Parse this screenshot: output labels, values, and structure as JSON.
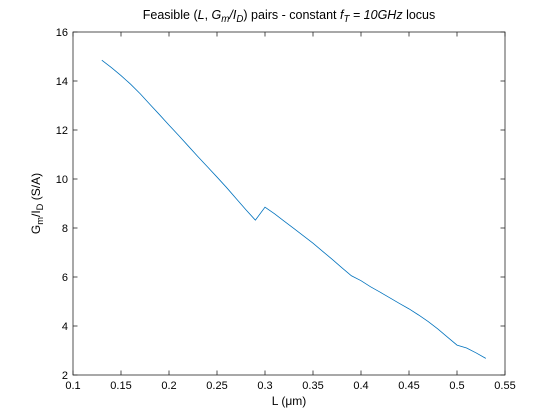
{
  "chart_data": {
    "type": "line",
    "title_parts": [
      {
        "t": "Feasible (",
        "s": "normal"
      },
      {
        "t": "L",
        "s": "italic"
      },
      {
        "t": ", ",
        "s": "normal"
      },
      {
        "t": "G",
        "s": "italic"
      },
      {
        "t": "m",
        "s": "italic",
        "sub": true
      },
      {
        "t": "/",
        "s": "italic"
      },
      {
        "t": "I",
        "s": "italic"
      },
      {
        "t": "D",
        "s": "italic",
        "sub": true
      },
      {
        "t": ") pairs - constant ",
        "s": "normal"
      },
      {
        "t": "f",
        "s": "italic"
      },
      {
        "t": "T",
        "s": "italic",
        "sub": true
      },
      {
        "t": " = 10GHz",
        "s": "italic"
      },
      {
        "t": " locus",
        "s": "normal"
      }
    ],
    "xlabel_parts": [
      {
        "t": "L (",
        "s": "normal"
      },
      {
        "t": "μ",
        "s": "normal"
      },
      {
        "t": "m)",
        "s": "normal"
      }
    ],
    "ylabel_parts": [
      {
        "t": "G",
        "s": "normal"
      },
      {
        "t": "m",
        "s": "normal",
        "sub": true
      },
      {
        "t": "/I",
        "s": "normal"
      },
      {
        "t": "D",
        "s": "normal",
        "sub": true
      },
      {
        "t": " (S/A)",
        "s": "normal"
      }
    ],
    "xlim": [
      0.1,
      0.55
    ],
    "ylim": [
      2,
      16
    ],
    "xticks": [
      0.1,
      0.15,
      0.2,
      0.25,
      0.3,
      0.35,
      0.4,
      0.45,
      0.5,
      0.55
    ],
    "xtick_labels": [
      "0.1",
      "0.15",
      "0.2",
      "0.25",
      "0.3",
      "0.35",
      "0.4",
      "0.45",
      "0.5",
      "0.55"
    ],
    "yticks": [
      2,
      4,
      6,
      8,
      10,
      12,
      14,
      16
    ],
    "ytick_labels": [
      "2",
      "4",
      "6",
      "8",
      "10",
      "12",
      "14",
      "16"
    ],
    "grid": false,
    "series": [
      {
        "name": "constant fT locus",
        "color": "#0072BD",
        "x": [
          0.13,
          0.14,
          0.15,
          0.16,
          0.17,
          0.18,
          0.19,
          0.2,
          0.21,
          0.22,
          0.23,
          0.24,
          0.25,
          0.26,
          0.27,
          0.28,
          0.29,
          0.3,
          0.31,
          0.32,
          0.33,
          0.34,
          0.35,
          0.36,
          0.37,
          0.38,
          0.39,
          0.4,
          0.41,
          0.42,
          0.43,
          0.44,
          0.45,
          0.46,
          0.47,
          0.48,
          0.49,
          0.5,
          0.51,
          0.52,
          0.53
        ],
        "y": [
          14.85,
          14.55,
          14.22,
          13.87,
          13.48,
          13.05,
          12.63,
          12.2,
          11.78,
          11.35,
          10.92,
          10.5,
          10.08,
          9.65,
          9.2,
          8.75,
          8.32,
          8.85,
          8.58,
          8.28,
          7.98,
          7.68,
          7.38,
          7.05,
          6.72,
          6.38,
          6.05,
          5.85,
          5.6,
          5.38,
          5.15,
          4.92,
          4.7,
          4.45,
          4.18,
          3.88,
          3.55,
          3.22,
          3.1,
          2.9,
          2.68
        ]
      }
    ]
  }
}
